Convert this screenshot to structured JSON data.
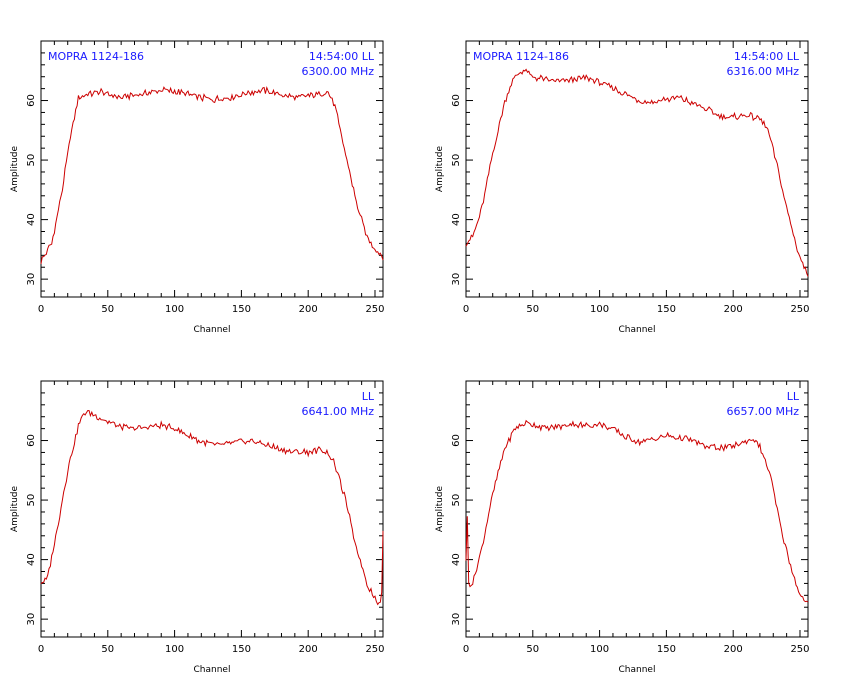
{
  "colors": {
    "frame": "#000000",
    "trace": "#cc0000",
    "annotation": "#1a1aff"
  },
  "chart_data": [
    {
      "type": "line",
      "xlabel": "Channel",
      "ylabel": "Amplitude",
      "xlim": [
        0,
        256
      ],
      "ylim": [
        27,
        70
      ],
      "xticks": [
        0,
        50,
        100,
        150,
        200,
        250
      ],
      "yticks": [
        30,
        40,
        50,
        60
      ],
      "source_label": "MOPRA 1124-186",
      "time_label": "14:54:00  LL",
      "freq_label": "6300.00  MHz",
      "x": [
        0,
        8,
        16,
        22,
        28,
        35,
        40,
        45,
        50,
        60,
        70,
        80,
        90,
        100,
        110,
        120,
        130,
        140,
        150,
        160,
        165,
        170,
        180,
        190,
        200,
        210,
        215,
        220,
        228,
        236,
        244,
        250,
        256
      ],
      "values": [
        33,
        36,
        45,
        54,
        60.5,
        61,
        61.2,
        61.5,
        61,
        60.5,
        61,
        61.2,
        61.8,
        61.5,
        61,
        60.5,
        60.2,
        60.5,
        61,
        61.5,
        61.8,
        61.5,
        61,
        60.5,
        60.8,
        61.2,
        61.5,
        59,
        51,
        43,
        37,
        35,
        33.8
      ]
    },
    {
      "type": "line",
      "xlabel": "Channel",
      "ylabel": "Amplitude",
      "xlim": [
        0,
        256
      ],
      "ylim": [
        27,
        70
      ],
      "xticks": [
        0,
        50,
        100,
        150,
        200,
        250
      ],
      "yticks": [
        30,
        40,
        50,
        60
      ],
      "source_label": "MOPRA 1124-186",
      "time_label": "14:54:00  LL",
      "freq_label": "6316.00  MHz",
      "x": [
        0,
        5,
        12,
        20,
        28,
        35,
        40,
        45,
        50,
        60,
        70,
        80,
        90,
        100,
        110,
        120,
        130,
        140,
        150,
        160,
        170,
        180,
        190,
        200,
        210,
        220,
        226,
        232,
        240,
        248,
        256
      ],
      "values": [
        36,
        37,
        42,
        51,
        59,
        63.5,
        64.8,
        65,
        64,
        63.5,
        63.2,
        63.5,
        63.8,
        63,
        62,
        61,
        60,
        59.8,
        60.2,
        60.5,
        59.5,
        58.5,
        57.5,
        57.2,
        57.5,
        57,
        55,
        50,
        42,
        35,
        30.5
      ]
    },
    {
      "type": "line",
      "xlabel": "Channel",
      "ylabel": "Amplitude",
      "xlim": [
        0,
        256
      ],
      "ylim": [
        27,
        70
      ],
      "xticks": [
        0,
        50,
        100,
        150,
        200,
        250
      ],
      "yticks": [
        30,
        40,
        50,
        60
      ],
      "source_label": "",
      "time_label": "LL",
      "freq_label": "6641.00  MHz",
      "x": [
        0,
        5,
        12,
        20,
        28,
        32,
        36,
        40,
        50,
        60,
        70,
        80,
        90,
        100,
        110,
        120,
        130,
        140,
        150,
        160,
        170,
        180,
        190,
        200,
        210,
        215,
        220,
        228,
        236,
        244,
        250,
        253,
        255,
        256
      ],
      "values": [
        36,
        37,
        45,
        55,
        62.5,
        64.5,
        64.8,
        64.2,
        63.2,
        62.3,
        62,
        62.2,
        62.6,
        62,
        60.8,
        59.8,
        59.2,
        59.5,
        59.8,
        59.8,
        59.2,
        58.5,
        58,
        58,
        58.5,
        57.8,
        56,
        50,
        42,
        36,
        33.5,
        32.5,
        34,
        45
      ]
    },
    {
      "type": "line",
      "xlabel": "Channel",
      "ylabel": "Amplitude",
      "xlim": [
        0,
        256
      ],
      "ylim": [
        27,
        70
      ],
      "xticks": [
        0,
        50,
        100,
        150,
        200,
        250
      ],
      "yticks": [
        30,
        40,
        50,
        60
      ],
      "source_label": "",
      "time_label": "LL",
      "freq_label": "6657.00  MHz",
      "x": [
        0,
        1,
        2,
        5,
        12,
        20,
        28,
        35,
        40,
        45,
        50,
        60,
        70,
        80,
        90,
        100,
        110,
        120,
        130,
        140,
        150,
        160,
        170,
        180,
        190,
        200,
        210,
        215,
        220,
        228,
        236,
        244,
        250,
        256
      ],
      "values": [
        40,
        47,
        36,
        36,
        42,
        51,
        58,
        61.5,
        62.5,
        63,
        62.8,
        62,
        62.3,
        62.8,
        62.5,
        62.8,
        62,
        60.5,
        59.8,
        60.2,
        60.8,
        60.5,
        60,
        59,
        58.8,
        59,
        59.8,
        60.2,
        59,
        54,
        45,
        38,
        34,
        32.5
      ]
    }
  ]
}
